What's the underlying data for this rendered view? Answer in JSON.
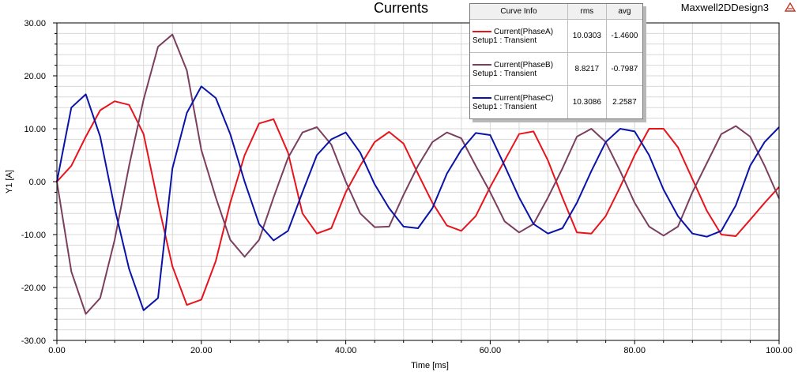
{
  "colors": {
    "phaseA": "#e8141c",
    "phaseB": "#7b3f5e",
    "phaseC": "#0a13a8",
    "grid": "#d8d8d8",
    "plot_border": "#000000"
  },
  "header": {
    "design_name": "Maxwell2DDesign3",
    "logo_icon": "ansys-logo-icon"
  },
  "legend": {
    "headers": {
      "curve": "Curve Info",
      "rms": "rms",
      "avg": "avg"
    },
    "rows": [
      {
        "name": "Current(PhaseA)",
        "setup": "Setup1 : Transient",
        "rms": "10.0303",
        "avg": "-1.4600"
      },
      {
        "name": "Current(PhaseB)",
        "setup": "Setup1 : Transient",
        "rms": "8.8217",
        "avg": "-0.7987"
      },
      {
        "name": "Current(PhaseC)",
        "setup": "Setup1 : Transient",
        "rms": "10.3086",
        "avg": "2.2587"
      }
    ]
  },
  "chart_data": {
    "type": "line",
    "title": "Currents",
    "xlabel": "Time [ms]",
    "ylabel": "Y1 [A]",
    "xlim": [
      0,
      100
    ],
    "ylim": [
      -30,
      30
    ],
    "x_tick_labels": [
      "0.00",
      "20.00",
      "40.00",
      "60.00",
      "80.00",
      "100.00"
    ],
    "y_tick_labels": [
      "30.00",
      "20.00",
      "10.00",
      "0.00",
      "-10.00",
      "-20.00",
      "-30.00"
    ],
    "grid": true,
    "legend_position": "top-right",
    "x": [
      0,
      2,
      4,
      6,
      8,
      10,
      12,
      14,
      16,
      18,
      20,
      22,
      24,
      26,
      28,
      30,
      32,
      34,
      36,
      38,
      40,
      42,
      44,
      46,
      48,
      50,
      52,
      54,
      56,
      58,
      60,
      62,
      64,
      66,
      68,
      70,
      72,
      74,
      76,
      78,
      80,
      82,
      84,
      86,
      88,
      90,
      92,
      94,
      96,
      98,
      100
    ],
    "series": [
      {
        "name": "Current(PhaseA)",
        "values": [
          0,
          3,
          8.5,
          13.5,
          15.2,
          14.5,
          9,
          -4,
          -16,
          -23.3,
          -22.3,
          -15,
          -4,
          5,
          11,
          11.8,
          5.5,
          -6,
          -9.8,
          -8.8,
          -2,
          3,
          7.5,
          9.4,
          7.2,
          1.5,
          -4,
          -8.3,
          -9.3,
          -6.5,
          -1,
          4,
          9,
          9.5,
          4,
          -3,
          -9.6,
          -9.8,
          -6.5,
          -1,
          5,
          10,
          10,
          6.5,
          0.5,
          -5.5,
          -10,
          -10.3,
          -7.2,
          -4,
          -1
        ]
      },
      {
        "name": "Current(PhaseB)",
        "values": [
          0,
          -17,
          -25,
          -22,
          -11,
          3,
          15.5,
          25.5,
          27.8,
          21,
          6,
          -3,
          -11,
          -14.2,
          -11,
          -3,
          4.5,
          9.3,
          10.3,
          7,
          0,
          -6,
          -8.6,
          -8.5,
          -2.5,
          3,
          7.5,
          9.3,
          8.2,
          3,
          -2,
          -7.5,
          -9.6,
          -8,
          -3,
          2.5,
          8.5,
          10,
          7.5,
          2,
          -4,
          -8.5,
          -10.2,
          -8.5,
          -2,
          3.5,
          9,
          10.5,
          8.5,
          3,
          -3.2
        ]
      },
      {
        "name": "Current(PhaseC)",
        "values": [
          0,
          14,
          16.5,
          8.5,
          -5,
          -16.5,
          -24.3,
          -22,
          2.5,
          13,
          18,
          15.8,
          9,
          0,
          -8,
          -11.1,
          -9.3,
          -2,
          5,
          8,
          9.3,
          5.5,
          -0.5,
          -5,
          -8.5,
          -8.8,
          -5,
          1.5,
          6,
          9.2,
          8.8,
          3,
          -3,
          -8,
          -9.8,
          -8.8,
          -4,
          2,
          7.5,
          10,
          9.5,
          5,
          -1.5,
          -6.5,
          -9.8,
          -10.4,
          -9.3,
          -4.5,
          3,
          7.5,
          10.3
        ]
      }
    ]
  }
}
